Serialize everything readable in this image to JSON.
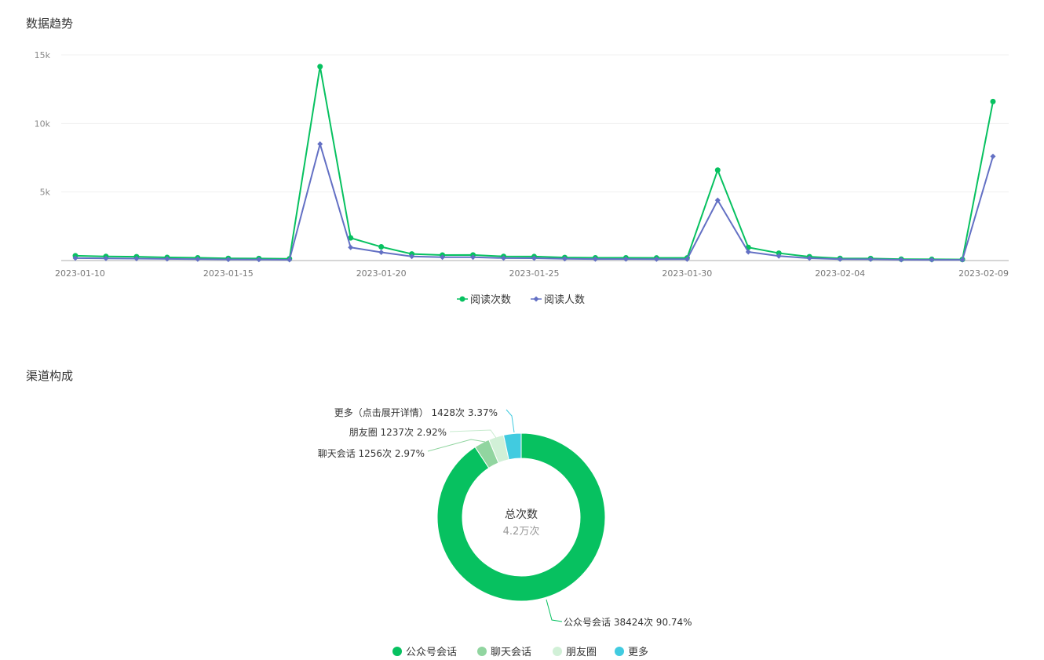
{
  "sections": {
    "trend_title": "数据趋势",
    "channel_title": "渠道构成"
  },
  "colors": {
    "green": "#07c160",
    "purple": "#6370c4",
    "pie": [
      "#07c160",
      "#91d5a0",
      "#d1f0d7",
      "#41cbe0"
    ]
  },
  "chart_data": [
    {
      "type": "line",
      "title": "",
      "x": [
        "2023-01-10",
        "2023-01-11",
        "2023-01-12",
        "2023-01-13",
        "2023-01-14",
        "2023-01-15",
        "2023-01-16",
        "2023-01-17",
        "2023-01-18",
        "2023-01-19",
        "2023-01-20",
        "2023-01-21",
        "2023-01-22",
        "2023-01-23",
        "2023-01-24",
        "2023-01-25",
        "2023-01-26",
        "2023-01-27",
        "2023-01-28",
        "2023-01-29",
        "2023-01-30",
        "2023-01-31",
        "2023-02-01",
        "2023-02-02",
        "2023-02-03",
        "2023-02-04",
        "2023-02-05",
        "2023-02-06",
        "2023-02-07",
        "2023-02-08",
        "2023-02-09"
      ],
      "x_tick_labels": [
        "2023-01-10",
        "2023-01-15",
        "2023-01-20",
        "2023-01-25",
        "2023-01-30",
        "2023-02-04",
        "2023-02-09"
      ],
      "y_tick_labels": [
        "5k",
        "10k",
        "15k"
      ],
      "ylim": [
        0,
        15000
      ],
      "grid": true,
      "legend_position": "bottom",
      "series": [
        {
          "name": "阅读次数",
          "color": "#07c160",
          "values": [
            350,
            300,
            280,
            230,
            200,
            160,
            150,
            130,
            14150,
            1650,
            1000,
            480,
            400,
            410,
            300,
            290,
            220,
            200,
            200,
            190,
            190,
            6600,
            960,
            540,
            280,
            160,
            150,
            100,
            90,
            80,
            11600
          ]
        },
        {
          "name": "阅读人数",
          "color": "#6370c4",
          "values": [
            180,
            160,
            140,
            120,
            100,
            80,
            70,
            60,
            8500,
            960,
            600,
            300,
            240,
            240,
            180,
            170,
            130,
            110,
            110,
            100,
            100,
            4400,
            630,
            330,
            170,
            100,
            90,
            60,
            50,
            50,
            7600
          ]
        }
      ]
    },
    {
      "type": "pie",
      "title": "",
      "center_title": "总次数",
      "center_value": "4.2万次",
      "legend_position": "bottom",
      "slices": [
        {
          "name": "公众号会话",
          "value": 38424,
          "percent": "90.74%",
          "label": "公众号会话 38424次 90.74%",
          "color": "#07c160"
        },
        {
          "name": "聊天会话",
          "value": 1256,
          "percent": "2.97%",
          "label": "聊天会话 1256次 2.97%",
          "color": "#91d5a0"
        },
        {
          "name": "朋友圈",
          "value": 1237,
          "percent": "2.92%",
          "label": "朋友圈 1237次 2.92%",
          "color": "#d1f0d7"
        },
        {
          "name": "更多",
          "value": 1428,
          "percent": "3.37%",
          "label": "更多（点击展开详情） 1428次 3.37%",
          "color": "#41cbe0"
        }
      ]
    }
  ]
}
